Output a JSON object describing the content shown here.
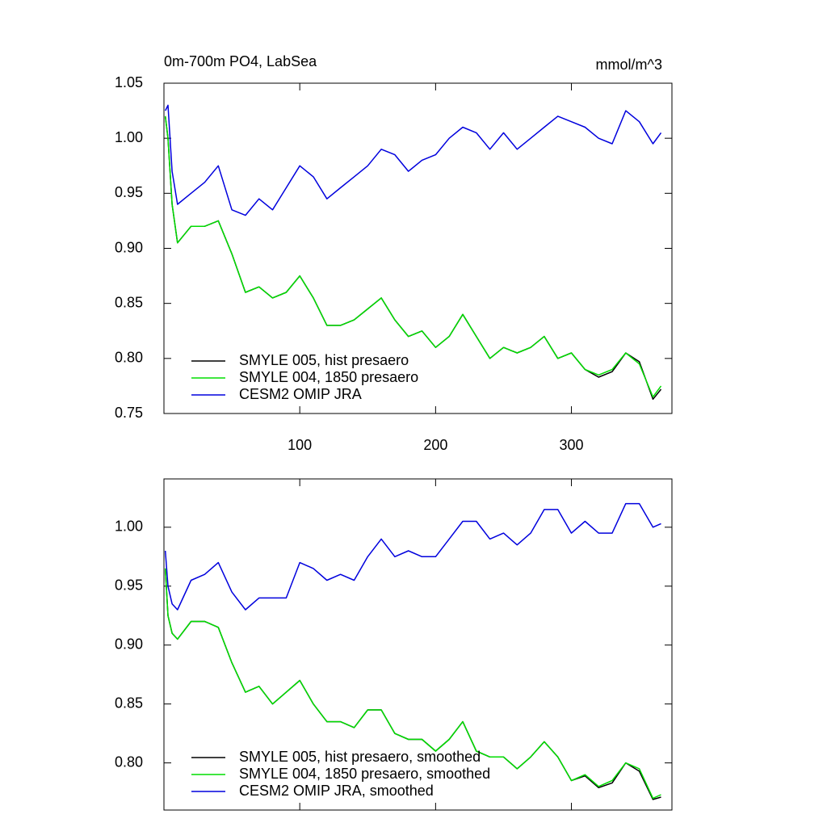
{
  "chart_data": [
    {
      "type": "line",
      "title": "0m-700m PO4, LabSea",
      "right_title": "mmol/m^3",
      "x": [
        1,
        3,
        6,
        10,
        20,
        30,
        40,
        50,
        60,
        70,
        80,
        90,
        100,
        110,
        120,
        130,
        140,
        150,
        160,
        170,
        180,
        190,
        200,
        210,
        220,
        230,
        240,
        250,
        260,
        270,
        280,
        290,
        300,
        310,
        320,
        330,
        340,
        350,
        360,
        366
      ],
      "xlim": [
        0,
        374
      ],
      "xticks": [
        100,
        200,
        300
      ],
      "xtick_labels": true,
      "ylim": [
        0.75,
        1.05
      ],
      "yticks": [
        0.75,
        {
          "value": 0.8,
          "label": "0.80"
        },
        0.85,
        {
          "value": 0.9,
          "label": "0.90"
        },
        0.95,
        {
          "value": 1.0,
          "label": "1.00"
        },
        1.05
      ],
      "legend": "lower left",
      "series": [
        {
          "name": "SMYLE 005, hist presaero",
          "color": "#000000",
          "values": [
            1.02,
            1.0,
            0.94,
            0.905,
            0.92,
            0.92,
            0.925,
            0.895,
            0.86,
            0.865,
            0.855,
            0.86,
            0.875,
            0.855,
            0.83,
            0.83,
            0.835,
            0.845,
            0.855,
            0.835,
            0.82,
            0.825,
            0.81,
            0.82,
            0.84,
            0.82,
            0.8,
            0.81,
            0.805,
            0.81,
            0.82,
            0.8,
            0.805,
            0.79,
            0.783,
            0.788,
            0.805,
            0.797,
            0.763,
            0.772
          ]
        },
        {
          "name": "SMYLE 004, 1850 presaero",
          "color": "#00dd00",
          "values": [
            1.02,
            1.0,
            0.94,
            0.905,
            0.92,
            0.92,
            0.925,
            0.895,
            0.86,
            0.865,
            0.855,
            0.86,
            0.875,
            0.855,
            0.83,
            0.83,
            0.835,
            0.845,
            0.855,
            0.835,
            0.82,
            0.825,
            0.81,
            0.82,
            0.84,
            0.82,
            0.8,
            0.81,
            0.805,
            0.81,
            0.82,
            0.8,
            0.805,
            0.79,
            0.785,
            0.79,
            0.805,
            0.795,
            0.765,
            0.775
          ]
        },
        {
          "name": "CESM2 OMIP JRA",
          "color": "#0000dd",
          "values": [
            1.025,
            1.03,
            0.97,
            0.94,
            0.95,
            0.96,
            0.975,
            0.935,
            0.93,
            0.945,
            0.935,
            0.955,
            0.975,
            0.965,
            0.945,
            0.955,
            0.965,
            0.975,
            0.99,
            0.985,
            0.97,
            0.98,
            0.985,
            1.0,
            1.01,
            1.005,
            0.99,
            1.005,
            0.99,
            1.0,
            1.01,
            1.02,
            1.015,
            1.01,
            1.0,
            0.995,
            1.025,
            1.015,
            0.995,
            1.005
          ]
        }
      ]
    },
    {
      "type": "line",
      "x": [
        1,
        3,
        6,
        10,
        20,
        30,
        40,
        50,
        60,
        70,
        80,
        90,
        100,
        110,
        120,
        130,
        140,
        150,
        160,
        170,
        180,
        190,
        200,
        210,
        220,
        230,
        240,
        250,
        260,
        270,
        280,
        290,
        300,
        310,
        320,
        330,
        340,
        350,
        360,
        366
      ],
      "xlim": [
        0,
        374
      ],
      "xticks": [
        100,
        200,
        300
      ],
      "xtick_labels": false,
      "ylim": [
        0.76,
        1.041
      ],
      "yticks": [
        {
          "value": 0.8,
          "label": "0.80"
        },
        0.85,
        {
          "value": 0.9,
          "label": "0.90"
        },
        0.95,
        {
          "value": 1.0,
          "label": "1.00"
        }
      ],
      "legend": "lower left",
      "series": [
        {
          "name": "SMYLE 005, hist presaero, smoothed",
          "color": "#000000",
          "values": [
            0.965,
            0.925,
            0.91,
            0.905,
            0.92,
            0.92,
            0.915,
            0.885,
            0.86,
            0.865,
            0.85,
            0.86,
            0.87,
            0.85,
            0.835,
            0.835,
            0.83,
            0.845,
            0.845,
            0.825,
            0.82,
            0.82,
            0.81,
            0.82,
            0.835,
            0.81,
            0.805,
            0.805,
            0.795,
            0.805,
            0.818,
            0.805,
            0.785,
            0.789,
            0.779,
            0.783,
            0.8,
            0.793,
            0.769,
            0.771
          ]
        },
        {
          "name": "SMYLE 004, 1850 presaero, smoothed",
          "color": "#00dd00",
          "values": [
            0.965,
            0.925,
            0.91,
            0.905,
            0.92,
            0.92,
            0.915,
            0.885,
            0.86,
            0.865,
            0.85,
            0.86,
            0.87,
            0.85,
            0.835,
            0.835,
            0.83,
            0.845,
            0.845,
            0.825,
            0.82,
            0.82,
            0.81,
            0.82,
            0.835,
            0.81,
            0.805,
            0.805,
            0.795,
            0.805,
            0.818,
            0.805,
            0.785,
            0.79,
            0.78,
            0.785,
            0.8,
            0.795,
            0.77,
            0.773
          ]
        },
        {
          "name": "CESM2 OMIP JRA, smoothed",
          "color": "#0000dd",
          "values": [
            0.98,
            0.95,
            0.935,
            0.93,
            0.955,
            0.96,
            0.97,
            0.945,
            0.93,
            0.94,
            0.94,
            0.94,
            0.97,
            0.965,
            0.955,
            0.96,
            0.955,
            0.975,
            0.99,
            0.975,
            0.98,
            0.975,
            0.975,
            0.99,
            1.005,
            1.005,
            0.99,
            0.995,
            0.985,
            0.995,
            1.015,
            1.015,
            0.995,
            1.005,
            0.995,
            0.995,
            1.02,
            1.02,
            1.0,
            1.003
          ]
        }
      ]
    }
  ]
}
